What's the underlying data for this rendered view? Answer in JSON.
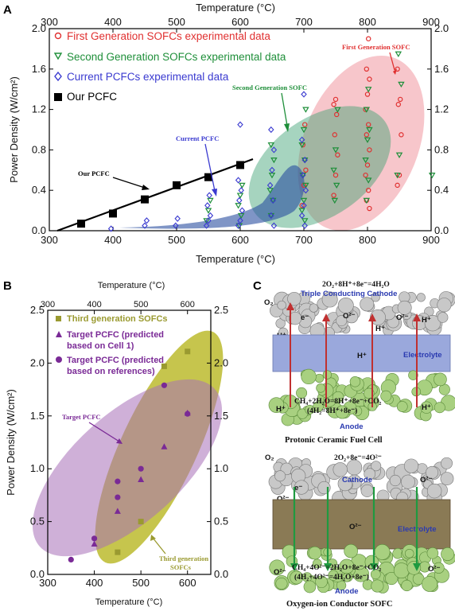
{
  "colors": {
    "first": "#e03030",
    "second": "#1f8f3a",
    "current": "#3a3ad0",
    "ours": "#000000",
    "olive": "#9a9a30",
    "purple": "#7a2a96"
  },
  "panelA": {
    "label": "A",
    "title_top": "Temperature (°C)",
    "xlabel": "Temperature (°C)",
    "ylabel": "Power Density (W/cm²)",
    "xticks": [
      "300",
      "400",
      "500",
      "600",
      "700",
      "800",
      "900"
    ],
    "yticks_left": [
      "0.0",
      "0.4",
      "0.8",
      "1.2",
      "1.6",
      "2.0"
    ],
    "yticks_right": [
      "0.0",
      "0.4",
      "0.8",
      "1.2",
      "1.6",
      "2.0"
    ],
    "legend": [
      "First Generation SOFCs experimental data",
      "Second Generation SOFCs experimental data",
      "Current PCFCs experimental data",
      "Our PCFC"
    ],
    "annotations": {
      "first": "First Generation SOFC",
      "second": "Second Generation SOFC",
      "current": "Current PCFC",
      "ours": "Our PCFC"
    }
  },
  "panelB": {
    "label": "B",
    "title_top": "Temperature (°C)",
    "xlabel": "Temperature (°C)",
    "ylabel": "Power Density (W/cm²)",
    "xticks": [
      "300",
      "400",
      "500",
      "600"
    ],
    "xticks_top": [
      "300",
      "400",
      "500",
      "600"
    ],
    "yticks": [
      "0.0",
      "0.5",
      "1.0",
      "1.5",
      "2.0",
      "2.5"
    ],
    "legend": [
      "Third generation SOFCs",
      "Target PCFC (predicted",
      "based on Cell 1)",
      "Target PCFC (predicted",
      "based on references)"
    ],
    "annotations": {
      "target": "Target PCFC",
      "third1": "Third generation",
      "third2": "SOFCs"
    }
  },
  "panelC": {
    "label": "C",
    "top": {
      "eq": "2O₂+8H⁺+8e⁻=4H₂O",
      "cathode": "Triple Conducting Cathode",
      "o2": "O₂",
      "e": "e⁻",
      "o2m": "O²⁻",
      "hplus": "H⁺",
      "electrolyte": "Electrolyte",
      "anode_eq1": "CH₄+2H₂O=8H⁺+8e⁻+CO₂",
      "anode_eq2": "(4H₂=8H⁺+8e⁻)",
      "anode": "Anode",
      "title": "Protonic Ceramic Fuel Cell"
    },
    "bottom": {
      "eq": "2O₂+8e⁻=4O²⁻",
      "cathode": "Cathode",
      "o2": "O₂",
      "e": "e⁻",
      "o2m": "O²⁻",
      "electrolyte": "Electrolyte",
      "anode_eq1": "CH₄+4O²⁻=2H₂O+8e⁻+CO₂",
      "anode_eq2": "(4H₂+4O²⁻=4H₂O+8e⁻)",
      "anode": "Anode",
      "title": "Oxygen-ion Conductor SOFC"
    }
  },
  "chart_data": [
    {
      "type": "scatter",
      "panel": "A",
      "xlabel": "Temperature (°C)",
      "ylabel": "Power Density (W/cm²)",
      "xlim": [
        300,
        900
      ],
      "ylim": [
        0,
        2.0
      ],
      "series": [
        {
          "name": "First Generation SOFCs experimental data",
          "marker": "circle",
          "color": "#e03030",
          "x": [
            700,
            700,
            700,
            700,
            700,
            750,
            750,
            750,
            750,
            750,
            750,
            750,
            800,
            800,
            800,
            800,
            800,
            800,
            800,
            800,
            800,
            800,
            800,
            800,
            800,
            850,
            850,
            850,
            850,
            850,
            850
          ],
          "y": [
            0.25,
            0.45,
            0.6,
            0.85,
            1.05,
            0.35,
            0.55,
            0.75,
            0.95,
            1.15,
            1.25,
            1.3,
            0.22,
            0.3,
            0.4,
            0.55,
            0.65,
            0.8,
            0.95,
            1.05,
            1.2,
            1.35,
            1.5,
            1.6,
            1.9,
            0.45,
            0.55,
            0.95,
            1.25,
            1.3,
            1.6
          ]
        },
        {
          "name": "Second Generation SOFCs experimental data",
          "marker": "triangle-down",
          "color": "#1f8f3a",
          "x": [
            550,
            550,
            550,
            600,
            600,
            600,
            600,
            600,
            650,
            650,
            650,
            650,
            650,
            650,
            700,
            700,
            700,
            700,
            700,
            700,
            700,
            700,
            700,
            750,
            750,
            750,
            750,
            750,
            800,
            800,
            800,
            800,
            800,
            800,
            800,
            850,
            850,
            850,
            850,
            900
          ],
          "y": [
            0.1,
            0.2,
            0.3,
            0.05,
            0.15,
            0.25,
            0.35,
            0.45,
            0.15,
            0.3,
            0.4,
            0.55,
            0.7,
            0.85,
            0.1,
            0.2,
            0.3,
            0.45,
            0.55,
            0.7,
            0.85,
            1.0,
            1.2,
            0.3,
            0.45,
            0.6,
            0.8,
            1.2,
            0.3,
            0.5,
            0.7,
            0.9,
            1.0,
            1.2,
            1.4,
            0.55,
            0.75,
            1.45,
            1.75,
            0.55
          ]
        },
        {
          "name": "Current PCFCs experimental data",
          "marker": "diamond",
          "color": "#3a3ad0",
          "x": [
            400,
            450,
            450,
            500,
            500,
            550,
            550,
            550,
            550,
            550,
            600,
            600,
            600,
            600,
            600,
            600,
            600,
            650,
            650,
            650,
            650,
            650,
            650,
            650,
            700,
            700,
            700,
            700,
            700,
            700,
            700,
            700
          ],
          "y": [
            0.02,
            0.05,
            0.1,
            0.05,
            0.12,
            0.05,
            0.1,
            0.15,
            0.25,
            0.35,
            0.05,
            0.1,
            0.2,
            0.3,
            0.4,
            0.5,
            1.05,
            0.05,
            0.15,
            0.3,
            0.45,
            0.6,
            0.8,
            1.0,
            0.05,
            0.15,
            0.25,
            0.4,
            0.55,
            0.7,
            0.9,
            1.35
          ]
        },
        {
          "name": "Our PCFC",
          "marker": "square",
          "color": "#000000",
          "x": [
            350,
            400,
            450,
            500,
            550,
            600
          ],
          "y": [
            0.07,
            0.17,
            0.31,
            0.45,
            0.53,
            0.65
          ]
        }
      ]
    },
    {
      "type": "scatter",
      "panel": "B",
      "xlabel": "Temperature (°C)",
      "ylabel": "Power Density (W/cm²)",
      "xlim": [
        300,
        650
      ],
      "ylim": [
        0,
        2.5
      ],
      "series": [
        {
          "name": "Third generation SOFCs",
          "marker": "square",
          "color": "#9a9a30",
          "x": [
            450,
            500,
            550,
            600
          ],
          "y": [
            0.21,
            0.5,
            1.97,
            2.11
          ]
        },
        {
          "name": "Target PCFC (predicted based on Cell 1)",
          "marker": "triangle",
          "color": "#7a2a96",
          "x": [
            400,
            450,
            500,
            550,
            600
          ],
          "y": [
            0.29,
            0.6,
            0.9,
            1.21,
            1.53
          ]
        },
        {
          "name": "Target PCFC (predicted based on references)",
          "marker": "circle",
          "color": "#7a2a96",
          "x": [
            350,
            400,
            450,
            450,
            500,
            550,
            600
          ],
          "y": [
            0.14,
            0.34,
            0.73,
            0.88,
            1.0,
            1.79,
            1.52
          ]
        }
      ]
    }
  ]
}
